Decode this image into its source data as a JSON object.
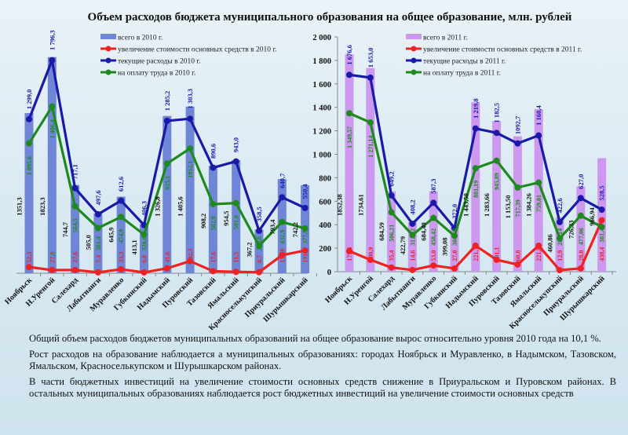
{
  "title": "Объем расходов бюджета муниципального образования на общее образование, млн. рублей",
  "colors": {
    "total_2010": "#6f86d6",
    "total_2011": "#cc99ee",
    "capital": "#ee2222",
    "current": "#1a1aa8",
    "labor": "#1e8a1e"
  },
  "chart_data": [
    {
      "type": "bar+line",
      "categories": [
        "Ноябрьск",
        "Н.Уренгой",
        "Салехард",
        "Лабытнанги",
        "Муравленко",
        "Губкинский",
        "Надымский",
        "Пуровский",
        "Тазовский",
        "Ямальский",
        "Красноселькупский",
        "Приуральский",
        "Шурышкарский"
      ],
      "legend_position": "top",
      "series": [
        {
          "name": "всего в 2010 г.",
          "kind": "bar",
          "values": [
            1351.3,
            1823.3,
            744.7,
            505.0,
            645.9,
            413.1,
            1326.8,
            1405.6,
            908.2,
            954.5,
            367.2,
            793.4,
            742.2
          ],
          "labels": [
            "1351,3",
            "1823,3",
            "744,7",
            "505,0",
            "645,9",
            "413,1",
            "1 326,8",
            "1 405,6",
            "908,2",
            "954,5",
            "367,2",
            "793,4",
            "742,2"
          ]
        },
        {
          "name": "увеличение стоимости основных средств в 2010 г.",
          "kind": "line",
          "values": [
            52.3,
            27.0,
            27.6,
            7.4,
            33.3,
            6.8,
            41.6,
            102.3,
            17.6,
            11.5,
            8.7,
            152.8,
            191.8
          ],
          "labels": [
            "52,3",
            "27,0",
            "27,6",
            "7,4",
            "33,3",
            "6,8",
            "41,6",
            "102,3",
            "17,6",
            "11,5",
            "8,7",
            "152,8",
            "191,8"
          ]
        },
        {
          "name": "текущие расходы в 2010 г.",
          "kind": "line",
          "values": [
            1299.0,
            1796.3,
            717.1,
            497.6,
            612.6,
            406.3,
            1285.2,
            1303.3,
            890.6,
            943.0,
            358.5,
            640.7,
            550.4
          ],
          "labels": [
            "1 299,0",
            "1 796,3",
            "717,1",
            "497,6",
            "612,6",
            "406,3",
            "1 285,2",
            "1 303,3",
            "890,6",
            "943,0",
            "358,5",
            "640,7",
            "550,4"
          ]
        },
        {
          "name": "на оплату труда в 2010 г.",
          "kind": "line",
          "values": [
            1095.6,
            1406.4,
            564.5,
            381.4,
            474.9,
            326.0,
            925.1,
            1052.1,
            582.9,
            591.8,
            230.8,
            432.9,
            377.9
          ],
          "labels": [
            "1 095,6",
            "1 406,4",
            "564,5",
            "381,4",
            "474,9",
            "326,0",
            "925,1",
            "1052,1",
            "582,9",
            "591,8",
            "230,8",
            "432,9",
            "377,9"
          ]
        }
      ]
    },
    {
      "type": "bar+line",
      "categories": [
        "Ноябрьск",
        "Н.Уренгой",
        "Салехард",
        "Лабытнанги",
        "Муравленко",
        "Губкинский",
        "Надымский",
        "Пуровский",
        "Тазовский",
        "Ямальский",
        "Красноселькупский",
        "Приуральский",
        "Шурышкарский"
      ],
      "ylim": [
        0,
        2000
      ],
      "yticks": [
        "0",
        "200",
        "400",
        "600",
        "800",
        "1 000",
        "1 200",
        "1 400",
        "1 600",
        "1 800",
        "2 000"
      ],
      "legend_position": "top",
      "series": [
        {
          "name": "всего в 2011 г.",
          "kind": "bar",
          "values": [
            1852.38,
            1734.61,
            684.59,
            422.79,
            684.4,
            399.08,
            1443.5,
            1283.66,
            1153.5,
            1384.26,
            460.86,
            726.33,
            966.94
          ],
          "labels": [
            "1852,38",
            "1734,61",
            "684,59",
            "422,79",
            "684,40",
            "399,08",
            "1 443,50",
            "1 283,66",
            "1 153,50",
            "1 384,26",
            "460,86",
            "726,33",
            "966,94"
          ]
        },
        {
          "name": "увеличение стоимости основных средств в 2011 г.",
          "kind": "line",
          "values": [
            175.8,
            100.9,
            35.4,
            14.6,
            53.0,
            27.0,
            221.7,
            101.1,
            60.8,
            221.8,
            12.9,
            28.0,
            438.4
          ],
          "labels": [
            "175,8",
            "100,9",
            "35,4",
            "14,6",
            "53,0",
            "27,0",
            "221,7",
            "101,1",
            "60,8",
            "221,8",
            "12,9",
            "28,0",
            "438,4"
          ]
        },
        {
          "name": "текущие расходы в 2011 г.",
          "kind": "line",
          "values": [
            1676.6,
            1653.0,
            649.2,
            408.2,
            587.3,
            372.0,
            1219.8,
            1182.5,
            1092.7,
            1160.4,
            422.6,
            627.0,
            528.5
          ],
          "labels": [
            "1 676,6",
            "1 653,0",
            "649,2",
            "408,2",
            "587,3",
            "372,0",
            "1 219,8",
            "1 182,5",
            "1092,7",
            "1 160,4",
            "422,6",
            "627,0",
            "528,5"
          ]
        },
        {
          "name": "на оплату труда в 2011 г.",
          "kind": "line",
          "values": [
            1349.57,
            1271.14,
            506.21,
            312.72,
            458.42,
            304.69,
            881.19,
            945.89,
            717.39,
            759.01,
            285.14,
            477.06,
            381.42
          ],
          "labels": [
            "1 349,57",
            "1 271,14",
            "506,21",
            "312,72",
            "458,42",
            "304,69",
            "881,19",
            "945,89",
            "717,39",
            "759,01",
            "285,14",
            "477,06",
            "381,42"
          ]
        }
      ]
    }
  ],
  "paragraphs": [
    "Общий объем расходов бюджетов муниципальных образований на общее образование вырос относительно уровня 2010 года на 10,1 %.",
    "Рост расходов на образование наблюдается а муниципальных образованиях: городах Ноябрьск и Муравленко, в Надымском, Тазовском, Ямальском, Красноселькупском и Шурышкарском районах.",
    "В части бюджетных инвестиций на увеличение стоимости основных средств снижение в Приуральском и Пуровском районах. В остальных муниципальных образованиях наблюдается рост бюджетных инвестиций на увеличение стоимости основных средств"
  ]
}
